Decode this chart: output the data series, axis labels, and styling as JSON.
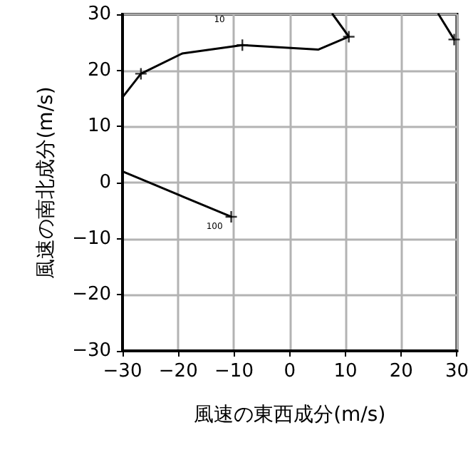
{
  "chart_data": {
    "type": "line",
    "xlabel": "風速の東西成分(m/s)",
    "ylabel": "風速の南北成分(m/s)",
    "series": [
      {
        "color": "#000000",
        "marker": "none",
        "x": [
          -30,
          -10.5,
          null,
          -30,
          -26.7,
          -19.3,
          -8.5,
          5.1,
          10.6,
          7.7,
          null,
          26.7,
          29.5
        ],
        "values": [
          2,
          -6.1,
          null,
          15.2,
          19.4,
          23.0,
          24.5,
          23.7,
          26.0,
          30,
          null,
          30,
          25.5
        ]
      },
      {
        "type": "scatter",
        "color": "#000000",
        "marker": "cross",
        "x": [
          -10.5,
          -26.7,
          -8.5,
          10.6,
          29.5
        ],
        "values": [
          -6.1,
          19.4,
          24.5,
          26.0,
          25.5
        ]
      }
    ],
    "annotations": [
      {
        "text": "100",
        "x": -10.5,
        "y": -6.1
      },
      "10"
    ],
    "xlim": [
      -30,
      30
    ],
    "ylim": [
      -30,
      30
    ],
    "xticks": [
      {
        "value": -30,
        "label": "−30"
      },
      {
        "value": -20,
        "label": "−20"
      },
      {
        "value": -10,
        "label": "−10"
      },
      0,
      10,
      20,
      30
    ],
    "yticks": [
      {
        "value": -30,
        "label": "−30"
      },
      {
        "value": -20,
        "label": "−20"
      },
      {
        "value": -10,
        "label": "−10"
      },
      0,
      10,
      20,
      30
    ],
    "grid": true
  }
}
